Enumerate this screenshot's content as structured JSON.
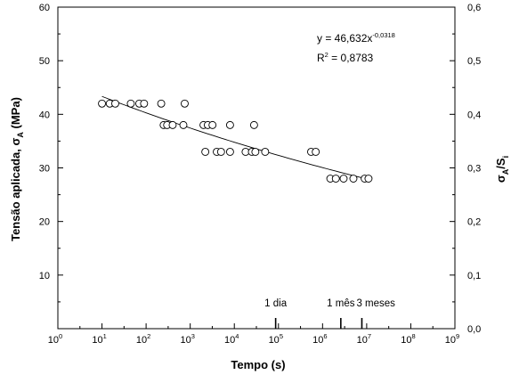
{
  "chart_data": {
    "type": "scatter",
    "xlabel": "Tempo (s)",
    "x_scale": "log",
    "xlim": [
      1,
      1000000000
    ],
    "x_ticks": [
      {
        "value": 1,
        "base": "10",
        "exp": "0"
      },
      {
        "value": 10,
        "base": "10",
        "exp": "1"
      },
      {
        "value": 100,
        "base": "10",
        "exp": "2"
      },
      {
        "value": 1000,
        "base": "10",
        "exp": "3"
      },
      {
        "value": 10000,
        "base": "10",
        "exp": "4"
      },
      {
        "value": 100000,
        "base": "10",
        "exp": "5"
      },
      {
        "value": 1000000,
        "base": "10",
        "exp": "6"
      },
      {
        "value": 10000000,
        "base": "10",
        "exp": "7"
      },
      {
        "value": 100000000,
        "base": "10",
        "exp": "8"
      },
      {
        "value": 1000000000,
        "base": "10",
        "exp": "9"
      }
    ],
    "ylabel_left": {
      "main": "Tensão aplicada, σ",
      "sub": "A",
      "unit": " (MPa)"
    },
    "ylim": [
      0,
      60
    ],
    "y_ticks": [
      "0",
      "10",
      "20",
      "30",
      "40",
      "50",
      "60"
    ],
    "ylabel_right": {
      "main": "σ",
      "sub1": "A",
      "sep": "/S",
      "sub2": "i"
    },
    "ylim_right": [
      0,
      0.6
    ],
    "y_right_ticks": [
      "0,0",
      "0,1",
      "0,2",
      "0,3",
      "0,4",
      "0,5",
      "0,6"
    ],
    "grid": false,
    "series": [
      {
        "marker": "open-circle",
        "points": [
          [
            10,
            42
          ],
          [
            15,
            42
          ],
          [
            20,
            42
          ],
          [
            45,
            42
          ],
          [
            70,
            42
          ],
          [
            90,
            42
          ],
          [
            220,
            42
          ],
          [
            750,
            42
          ],
          [
            250,
            38
          ],
          [
            300,
            38
          ],
          [
            400,
            38
          ],
          [
            700,
            38
          ],
          [
            2000,
            38
          ],
          [
            2500,
            38
          ],
          [
            3200,
            38
          ],
          [
            8000,
            38
          ],
          [
            28000,
            38
          ],
          [
            2200,
            33
          ],
          [
            4000,
            33
          ],
          [
            5000,
            33
          ],
          [
            8000,
            33
          ],
          [
            18000,
            33
          ],
          [
            25000,
            33
          ],
          [
            30000,
            33
          ],
          [
            50000,
            33
          ],
          [
            550000,
            33
          ],
          [
            700000,
            33
          ],
          [
            1500000,
            28
          ],
          [
            2000000,
            28
          ],
          [
            3000000,
            28
          ],
          [
            5000000,
            28
          ],
          [
            9000000,
            28
          ],
          [
            11000000,
            28
          ]
        ]
      }
    ],
    "fit": {
      "model": "power",
      "coefficient": 46.632,
      "exponent": -0.0318,
      "x_range": [
        10,
        10000000
      ],
      "equation_label": {
        "prefix": "y = 46,632x",
        "exponent": "-0,0318"
      },
      "r2_label": {
        "base": "R",
        "exp": "2",
        "rest": " = 0,8783"
      }
    },
    "time_markers": [
      {
        "value": 86400,
        "label": "1 dia"
      },
      {
        "value": 2592000,
        "label": "1 mês"
      },
      {
        "value": 7776000,
        "label": "3 meses"
      }
    ]
  }
}
